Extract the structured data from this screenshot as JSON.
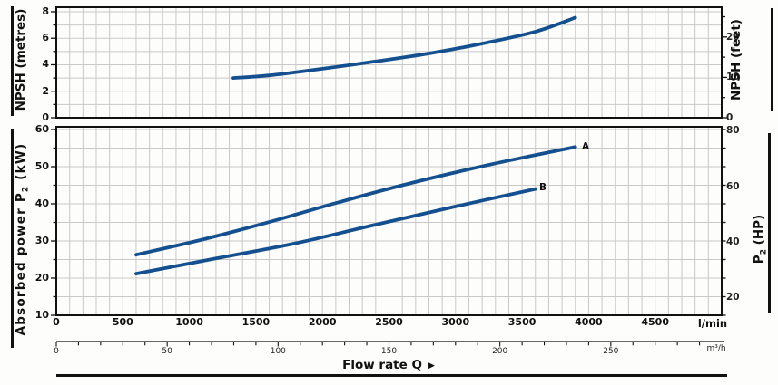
{
  "chart_data": [
    {
      "type": "line",
      "panel": "top",
      "ylabel_left": "NPSH (metres)",
      "ylabel_right": "NPSH (feet)",
      "xlabel": "Flow rate Q",
      "x_range_lmin": [
        0,
        5000
      ],
      "y_range_metres": [
        0,
        8.3
      ],
      "grid": "on",
      "x_gridline_step_lmin": 100,
      "y_gridline_step_metres": 1,
      "y_ticks_metres": [
        0,
        2,
        4,
        6,
        8
      ],
      "y_minor_ticks_metres": [
        1,
        3,
        5,
        7
      ],
      "y_ticks_feet": [
        0,
        10,
        20
      ],
      "y_minor_ticks_feet": [
        5,
        15,
        25
      ],
      "series": [
        {
          "name": "NPSH",
          "x_lmin": [
            1330,
            1600,
            2000,
            2400,
            2800,
            3200,
            3600,
            3900
          ],
          "y_metres": [
            3.0,
            3.2,
            3.7,
            4.25,
            4.85,
            5.6,
            6.5,
            7.55
          ]
        }
      ]
    },
    {
      "type": "line",
      "panel": "bottom",
      "ylabel_left": "Absorbed power P₂ (kW)",
      "ylabel_right": "P₂ (HP)",
      "xlabel": "Flow rate Q",
      "x_range_lmin": [
        0,
        5000
      ],
      "y_range_kw": [
        10,
        60.7
      ],
      "grid": "on",
      "x_gridline_step_lmin": 100,
      "y_gridline_step_kw": 5,
      "y_ticks_kw": [
        10,
        20,
        30,
        40,
        50,
        60
      ],
      "y_ticks_hp": [
        20,
        40,
        60,
        80
      ],
      "series": [
        {
          "name": "A",
          "x_lmin": [
            600,
            1100,
            1600,
            2100,
            2600,
            3100,
            3500,
            3900
          ],
          "y_kw": [
            26.3,
            30.4,
            35.1,
            40.2,
            45.0,
            49.3,
            52.4,
            55.3
          ]
        },
        {
          "name": "B",
          "x_lmin": [
            600,
            1200,
            1800,
            2400,
            3000,
            3600
          ],
          "y_kw": [
            21.2,
            25.3,
            29.4,
            34.4,
            39.3,
            44.0
          ]
        }
      ]
    }
  ],
  "x_axis": {
    "lmin_tick_labels": [
      0,
      500,
      1000,
      1500,
      2000,
      2500,
      3000,
      3500,
      4000,
      4500
    ],
    "lmin_unit": "l/min",
    "m3h_tick_labels": [
      0,
      50,
      100,
      150,
      200,
      250
    ],
    "m3h_minor_tick_step": 10,
    "m3h_minor_tick_max": 290,
    "m3h_unit": "m³/h",
    "title": "Flow rate Q",
    "title_arrow": "▶"
  },
  "labels": {
    "npsh_metres": "NPSH (metres)",
    "npsh_feet": "NPSH (feet)",
    "absorbed_pre": "Absorbed power P",
    "absorbed_sub": "2",
    "absorbed_post": " (kW)",
    "p2hp_pre": "P",
    "p2hp_sub": "2",
    "p2hp_post": " (HP)",
    "curve_a": "A",
    "curve_b": "B"
  },
  "colors": {
    "curve": "#14508f",
    "grid": "#c9c9c9",
    "axis": "#111111"
  }
}
